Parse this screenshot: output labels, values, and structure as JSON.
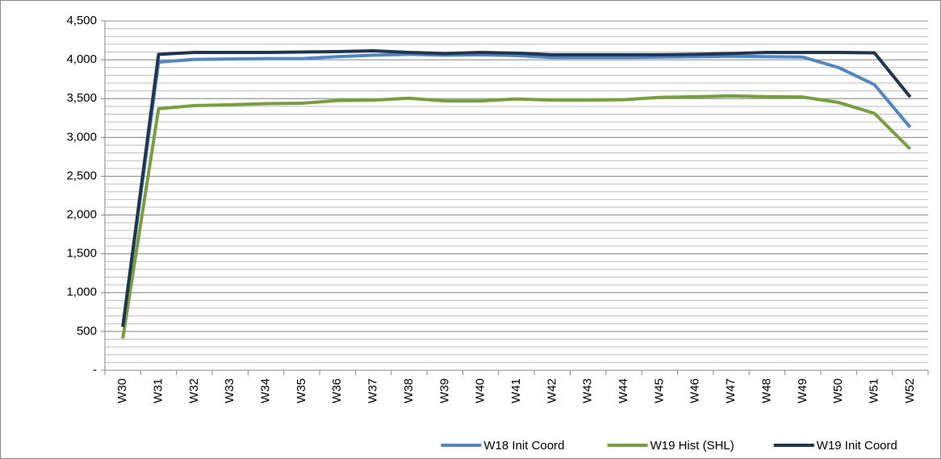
{
  "chart_data": {
    "type": "line",
    "categories": [
      "W30",
      "W31",
      "W32",
      "W33",
      "W34",
      "W35",
      "W36",
      "W37",
      "W38",
      "W39",
      "W40",
      "W41",
      "W42",
      "W43",
      "W44",
      "W45",
      "W46",
      "W47",
      "W48",
      "W49",
      "W50",
      "W51",
      "W52"
    ],
    "series": [
      {
        "name": "W18 Init Coord",
        "color": "#4f86c6",
        "values": [
          560,
          3970,
          4005,
          4010,
          4015,
          4015,
          4040,
          4060,
          4070,
          4060,
          4065,
          4055,
          4030,
          4030,
          4030,
          4035,
          4040,
          4045,
          4040,
          4035,
          3900,
          3680,
          3130
        ]
      },
      {
        "name": "W19 Hist (SHL)",
        "color": "#76a03a",
        "values": [
          410,
          3370,
          3410,
          3420,
          3435,
          3440,
          3475,
          3480,
          3505,
          3470,
          3470,
          3495,
          3480,
          3480,
          3485,
          3515,
          3525,
          3535,
          3525,
          3520,
          3450,
          3310,
          2850
        ]
      },
      {
        "name": "W19 Init Coord",
        "color": "#1f3553",
        "values": [
          560,
          4070,
          4095,
          4095,
          4095,
          4100,
          4105,
          4115,
          4095,
          4080,
          4095,
          4085,
          4065,
          4065,
          4065,
          4065,
          4070,
          4080,
          4095,
          4095,
          4095,
          4090,
          3520
        ]
      }
    ],
    "ylim": [
      0,
      4500
    ],
    "yticks": [
      {
        "value": 0,
        "label": "-"
      },
      500,
      {
        "value": 1000,
        "label": "1,000"
      },
      {
        "value": 1500,
        "label": "1,500"
      },
      {
        "value": 2000,
        "label": "2,000"
      },
      {
        "value": 2500,
        "label": "2,500"
      },
      {
        "value": 3000,
        "label": "3,000"
      },
      {
        "value": 3500,
        "label": "3,500"
      },
      {
        "value": 4000,
        "label": "4,000"
      },
      {
        "value": 4500,
        "label": "4,500"
      }
    ],
    "grid": true,
    "minor_grid": 100,
    "legend": "bottom"
  }
}
